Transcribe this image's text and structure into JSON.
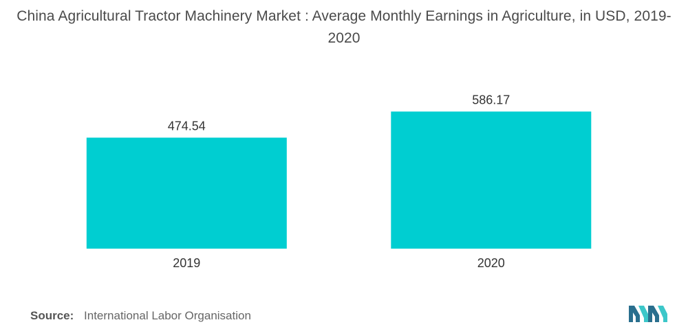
{
  "title": "China Agricultural Tractor Machinery Market : Average Monthly Earnings in Agriculture, in USD, 2019-2020",
  "source": {
    "label": "Source:",
    "value": "International Labor Organisation"
  },
  "colors": {
    "bar": "#00CED1",
    "logo_dark": "#2a6f8e",
    "logo_light": "#3cc7c9"
  },
  "logo": {
    "icon": "mordor-intelligence-logo-icon"
  },
  "chart_data": {
    "type": "bar",
    "title": "China Agricultural Tractor Machinery Market : Average Monthly Earnings in Agriculture, in USD, 2019-2020",
    "xlabel": "",
    "ylabel": "",
    "categories": [
      "2019",
      "2020"
    ],
    "values": [
      474.54,
      586.17
    ],
    "value_labels": [
      "474.54",
      "586.17"
    ],
    "ylim": [
      0,
      770
    ],
    "grid": false,
    "legend": "none"
  }
}
